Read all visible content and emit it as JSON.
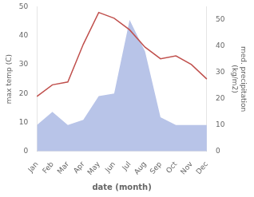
{
  "chart_data": {
    "type": "line",
    "xlabel": "date (month)",
    "ylabel": "max temp (C)",
    "y2label": "med. precipitation\n(kg/m2)",
    "categories": [
      "Jan",
      "Feb",
      "Mar",
      "Apr",
      "May",
      "Jun",
      "Jul",
      "Aug",
      "Sep",
      "Oct",
      "Nov",
      "Dec"
    ],
    "series": [
      {
        "type": "area",
        "color": "#b8c4e8",
        "axis": "y2",
        "values": [
          10,
          15,
          10,
          12,
          21,
          22,
          50,
          38,
          13,
          10,
          10,
          10
        ]
      },
      {
        "type": "line",
        "color": "#c0504d",
        "values": [
          19,
          23,
          24,
          37,
          48,
          46,
          42,
          36,
          32,
          33,
          30,
          25
        ]
      }
    ],
    "ylim": [
      0,
      50
    ],
    "yticks": [
      0,
      10,
      20,
      30,
      40,
      50
    ],
    "y2lim": [
      0,
      55
    ],
    "y2ticks": [
      0,
      10,
      20,
      30,
      40,
      50
    ],
    "grid": false
  }
}
